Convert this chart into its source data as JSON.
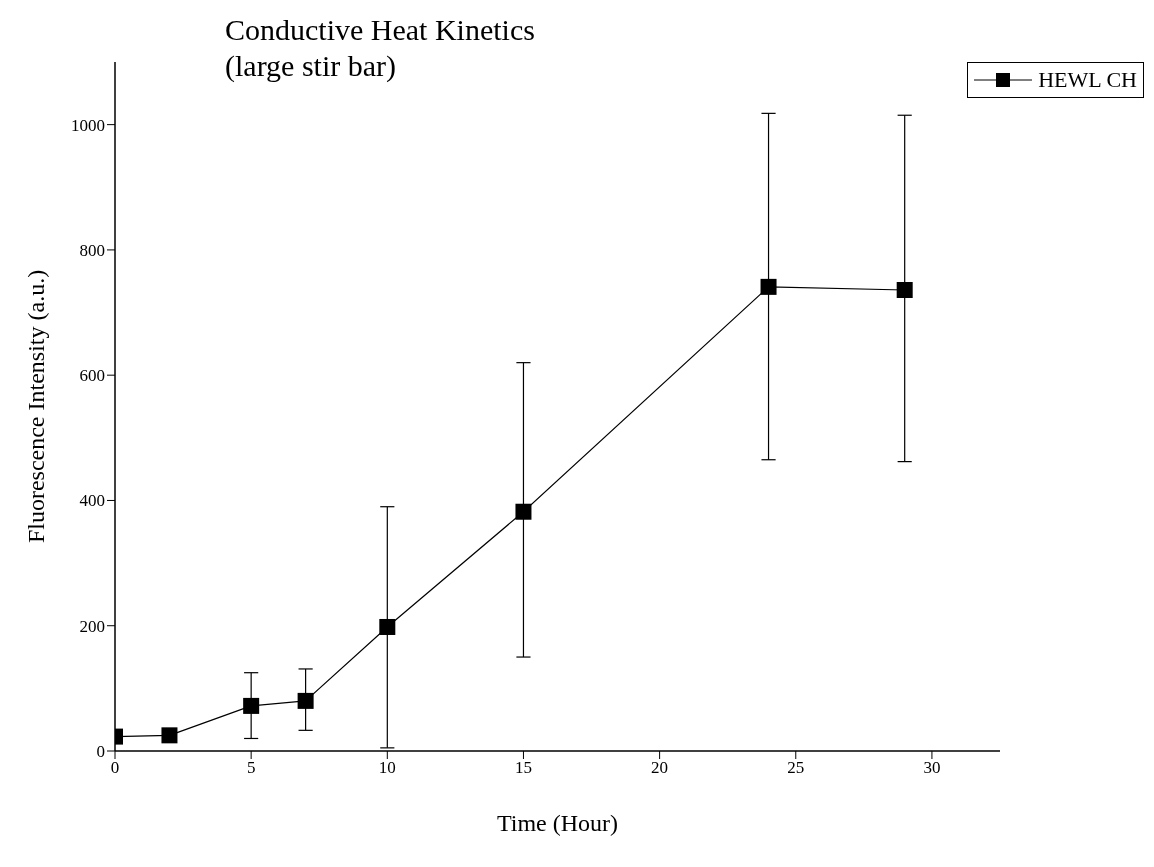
{
  "chart_data": {
    "type": "line",
    "title": "Conductive Heat Kinetics",
    "subtitle": "(large stir bar)",
    "xlabel": "Time (Hour)",
    "ylabel": "Fluorescence Intensity (a.u.)",
    "x": [
      0,
      2,
      5,
      7,
      10,
      15,
      24,
      29
    ],
    "series": [
      {
        "name": "HEWL CH",
        "color": "#000000",
        "values": [
          23,
          25,
          72,
          80,
          198,
          382,
          741,
          736
        ],
        "errors": [
          null,
          null,
          [
            20,
            125
          ],
          [
            33,
            131
          ],
          [
            5,
            390
          ],
          [
            150,
            620
          ],
          [
            465,
            1018
          ],
          [
            462,
            1015
          ]
        ]
      }
    ],
    "xlim": [
      0,
      32.5
    ],
    "xticks": [
      0,
      5,
      10,
      15,
      20,
      25,
      30
    ],
    "ylim": [
      0,
      1100
    ],
    "yticks": [
      0,
      200,
      400,
      600,
      800,
      1000
    ],
    "legend": "top right",
    "marker": "square",
    "line_style": "solid"
  }
}
